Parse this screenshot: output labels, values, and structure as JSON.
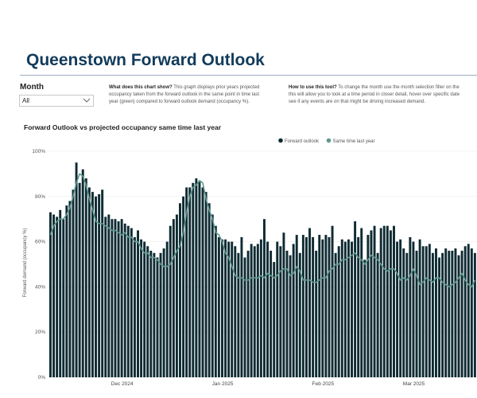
{
  "page": {
    "title": "Queenstown Forward Outlook"
  },
  "filter": {
    "label": "Month",
    "selected": "All"
  },
  "info": {
    "what_heading": "What does this chart show?",
    "what_text": "This graph displays prior years projected occupancy taken from the forward outlook in the same point in time last year (green) compared to forward outlook demand (occupancy %).",
    "how_heading": "How to use this tool?",
    "how_text": "To change the month use the month selection filter on the this will allow you to look at a time period in closer detail, hover over specific date see if any events are on that might be driving increased demand."
  },
  "colors": {
    "title": "#123b5a",
    "bars": "#0f2b33",
    "line": "#5e9a8e"
  },
  "chart_data": {
    "type": "bar",
    "title": "Forward Outlook vs projected occupancy same time last year",
    "ylabel": "Forward demand (occupancy %)",
    "xlabel": "",
    "ylim": [
      0,
      100
    ],
    "yticks": [
      "0%",
      "20%",
      "40%",
      "60%",
      "80%",
      "100%"
    ],
    "x_tick_labels": [
      {
        "label": "Dec 2024",
        "index": 22
      },
      {
        "label": "Jan 2025",
        "index": 53
      },
      {
        "label": "Feb 2025",
        "index": 84
      },
      {
        "label": "Mar 2025",
        "index": 112
      }
    ],
    "grid": true,
    "legend_position": "top",
    "series": [
      {
        "name": "Forward outlook",
        "kind": "bar",
        "values": [
          73,
          72,
          71,
          74,
          70,
          76,
          78,
          83,
          95,
          86,
          92,
          88,
          84,
          82,
          80,
          81,
          83,
          71,
          72,
          70,
          70,
          69,
          70,
          68,
          67,
          66,
          62,
          65,
          61,
          60,
          58,
          56,
          55,
          53,
          55,
          57,
          60,
          67,
          70,
          72,
          77,
          80,
          84,
          84,
          86,
          88,
          87,
          84,
          82,
          77,
          72,
          67,
          62,
          61,
          61,
          60,
          60,
          58,
          55,
          62,
          53,
          56,
          59,
          58,
          59,
          61,
          70,
          60,
          56,
          51,
          60,
          58,
          64,
          56,
          54,
          59,
          63,
          55,
          63,
          62,
          66,
          62,
          56,
          63,
          61,
          63,
          62,
          67,
          55,
          58,
          61,
          60,
          61,
          60,
          69,
          62,
          66,
          52,
          63,
          65,
          67,
          55,
          66,
          67,
          67,
          65,
          67,
          60,
          61,
          57,
          55,
          62,
          60,
          56,
          61,
          58,
          58,
          59,
          55,
          57,
          53,
          55,
          57,
          56,
          56,
          57,
          54,
          56,
          58,
          59,
          57,
          55
        ],
        "color": "#0f2b33"
      },
      {
        "name": "Same time last year",
        "kind": "line",
        "values": [
          63,
          67,
          69,
          70,
          70,
          72,
          75,
          80,
          86,
          90,
          89,
          85,
          79,
          74,
          69,
          68,
          68,
          67,
          66,
          65,
          65,
          64,
          63,
          64,
          62,
          62,
          60,
          60,
          57,
          55,
          55,
          53,
          53,
          52,
          50,
          49,
          49,
          50,
          53,
          56,
          58,
          64,
          73,
          80,
          84,
          85,
          87,
          86,
          79,
          74,
          70,
          64,
          63,
          60,
          55,
          53,
          49,
          45,
          44,
          44,
          43,
          43,
          44,
          44,
          44,
          45,
          44,
          46,
          45,
          44,
          45,
          47,
          48,
          48,
          45,
          46,
          49,
          47,
          43,
          43,
          43,
          42,
          42,
          43,
          44,
          44,
          47,
          48,
          50,
          50,
          52,
          52,
          53,
          54,
          55,
          53,
          52,
          50,
          52,
          54,
          53,
          52,
          50,
          48,
          47,
          48,
          48,
          46,
          43,
          44,
          43,
          45,
          48,
          45,
          41,
          42,
          44,
          43,
          42,
          44,
          44,
          42,
          41,
          40,
          41,
          42,
          44,
          46,
          43,
          41,
          40,
          43
        ],
        "color": "#5e9a8e"
      }
    ]
  }
}
